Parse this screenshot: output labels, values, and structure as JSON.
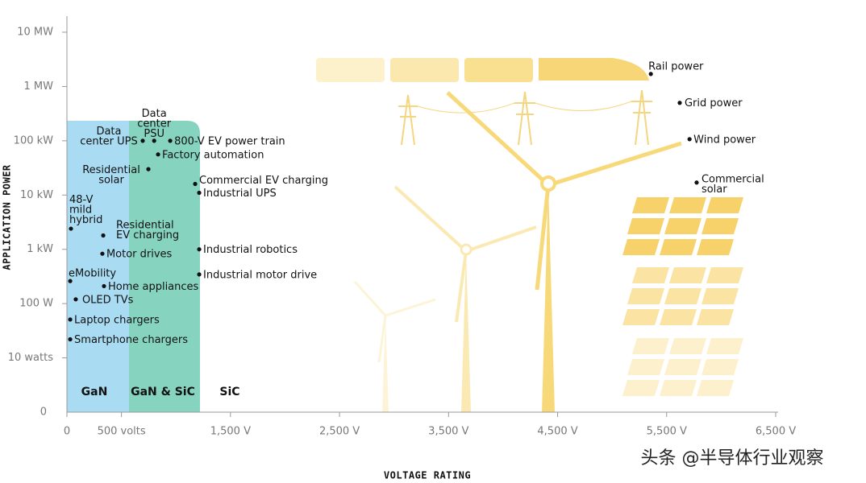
{
  "chart_data": {
    "type": "scatter",
    "x_label": "VOLTAGE RATING",
    "y_label": "APPLICATION POWER",
    "y_origin_label": "0",
    "xlim": [
      0,
      6500
    ],
    "xticks": [
      0,
      {
        "value": 500,
        "label": "500 volts"
      },
      {
        "value": 1500,
        "label": "1,500 V"
      },
      {
        "value": 2500,
        "label": "2,500 V"
      },
      {
        "value": 3500,
        "label": "3,500 V"
      },
      {
        "value": 4500,
        "label": "4,500 V"
      },
      {
        "value": 5500,
        "label": "5,500 V"
      },
      {
        "value": 6500,
        "label": "6,500 V"
      }
    ],
    "ylim": [
      1,
      10000000
    ],
    "log_y": true,
    "yticks": [
      {
        "value": 10,
        "label": "10 watts"
      },
      {
        "value": 100,
        "label": "100 W"
      },
      {
        "value": 1000,
        "label": "1 kW"
      },
      {
        "value": 10000,
        "label": "10 kW"
      },
      {
        "value": 100000,
        "label": "100 kW"
      },
      {
        "value": 1000000,
        "label": "1 MW"
      },
      {
        "value": 10000000,
        "label": "10 MW"
      }
    ],
    "color": "#111111",
    "regions": [
      "GaN",
      "GaN & SiC",
      "SiC"
    ],
    "points": [
      {
        "label": "Rail power",
        "x": 5355,
        "y": 1700000
      },
      {
        "label": "Grid power",
        "x": 5620,
        "y": 500000
      },
      {
        "label": "Wind power",
        "x": 5710,
        "y": 107000
      },
      {
        "label": "Commercial\nsolar",
        "x": 5775,
        "y": 17000
      },
      {
        "label": "Data\ncenter UPS",
        "x": 695,
        "y": 100000
      },
      {
        "label": "Data\ncenter\nPSU",
        "x": 800,
        "y": 100000
      },
      {
        "label": "800-V EV power train",
        "x": 947,
        "y": 100000
      },
      {
        "label": "Factory automation",
        "x": 836,
        "y": 56000
      },
      {
        "label": "Residential\nsolar",
        "x": 747,
        "y": 30000
      },
      {
        "label": "Commercial EV charging",
        "x": 1176,
        "y": 16000
      },
      {
        "label": "Industrial UPS",
        "x": 1213,
        "y": 11000
      },
      {
        "label": "48-V\nmild\nhybrid",
        "x": 37,
        "y": 2400
      },
      {
        "label": "Residential\nEV charging",
        "x": 333,
        "y": 1800
      },
      {
        "label": "Motor drives",
        "x": 325,
        "y": 830
      },
      {
        "label": "Industrial robotics",
        "x": 1213,
        "y": 1000
      },
      {
        "label": "Industrial motor drive",
        "x": 1213,
        "y": 345
      },
      {
        "label": "eMobility",
        "x": 30,
        "y": 260
      },
      {
        "label": "Home appliances",
        "x": 340,
        "y": 210
      },
      {
        "label": "OLED TVs",
        "x": 81,
        "y": 120
      },
      {
        "label": "Laptop chargers",
        "x": 30,
        "y": 51
      },
      {
        "label": "Smartphone chargers",
        "x": 30,
        "y": 22
      }
    ]
  },
  "watermark": "头条 @半导体行业观察"
}
